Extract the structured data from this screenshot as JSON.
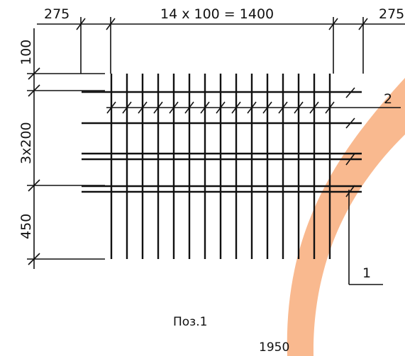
{
  "dimensions_top": {
    "left_margin": "275",
    "middle": "14 x 100 = 1400",
    "right_margin": "275"
  },
  "dimensions_left": {
    "top": "100",
    "middle": "3x200",
    "bottom": "450"
  },
  "callouts": {
    "bar_2": "2",
    "bar_1": "1"
  },
  "caption": "Поз.1",
  "overall_length": "1950",
  "watermark_color": "#f9b98f",
  "ink_color": "#111111"
}
